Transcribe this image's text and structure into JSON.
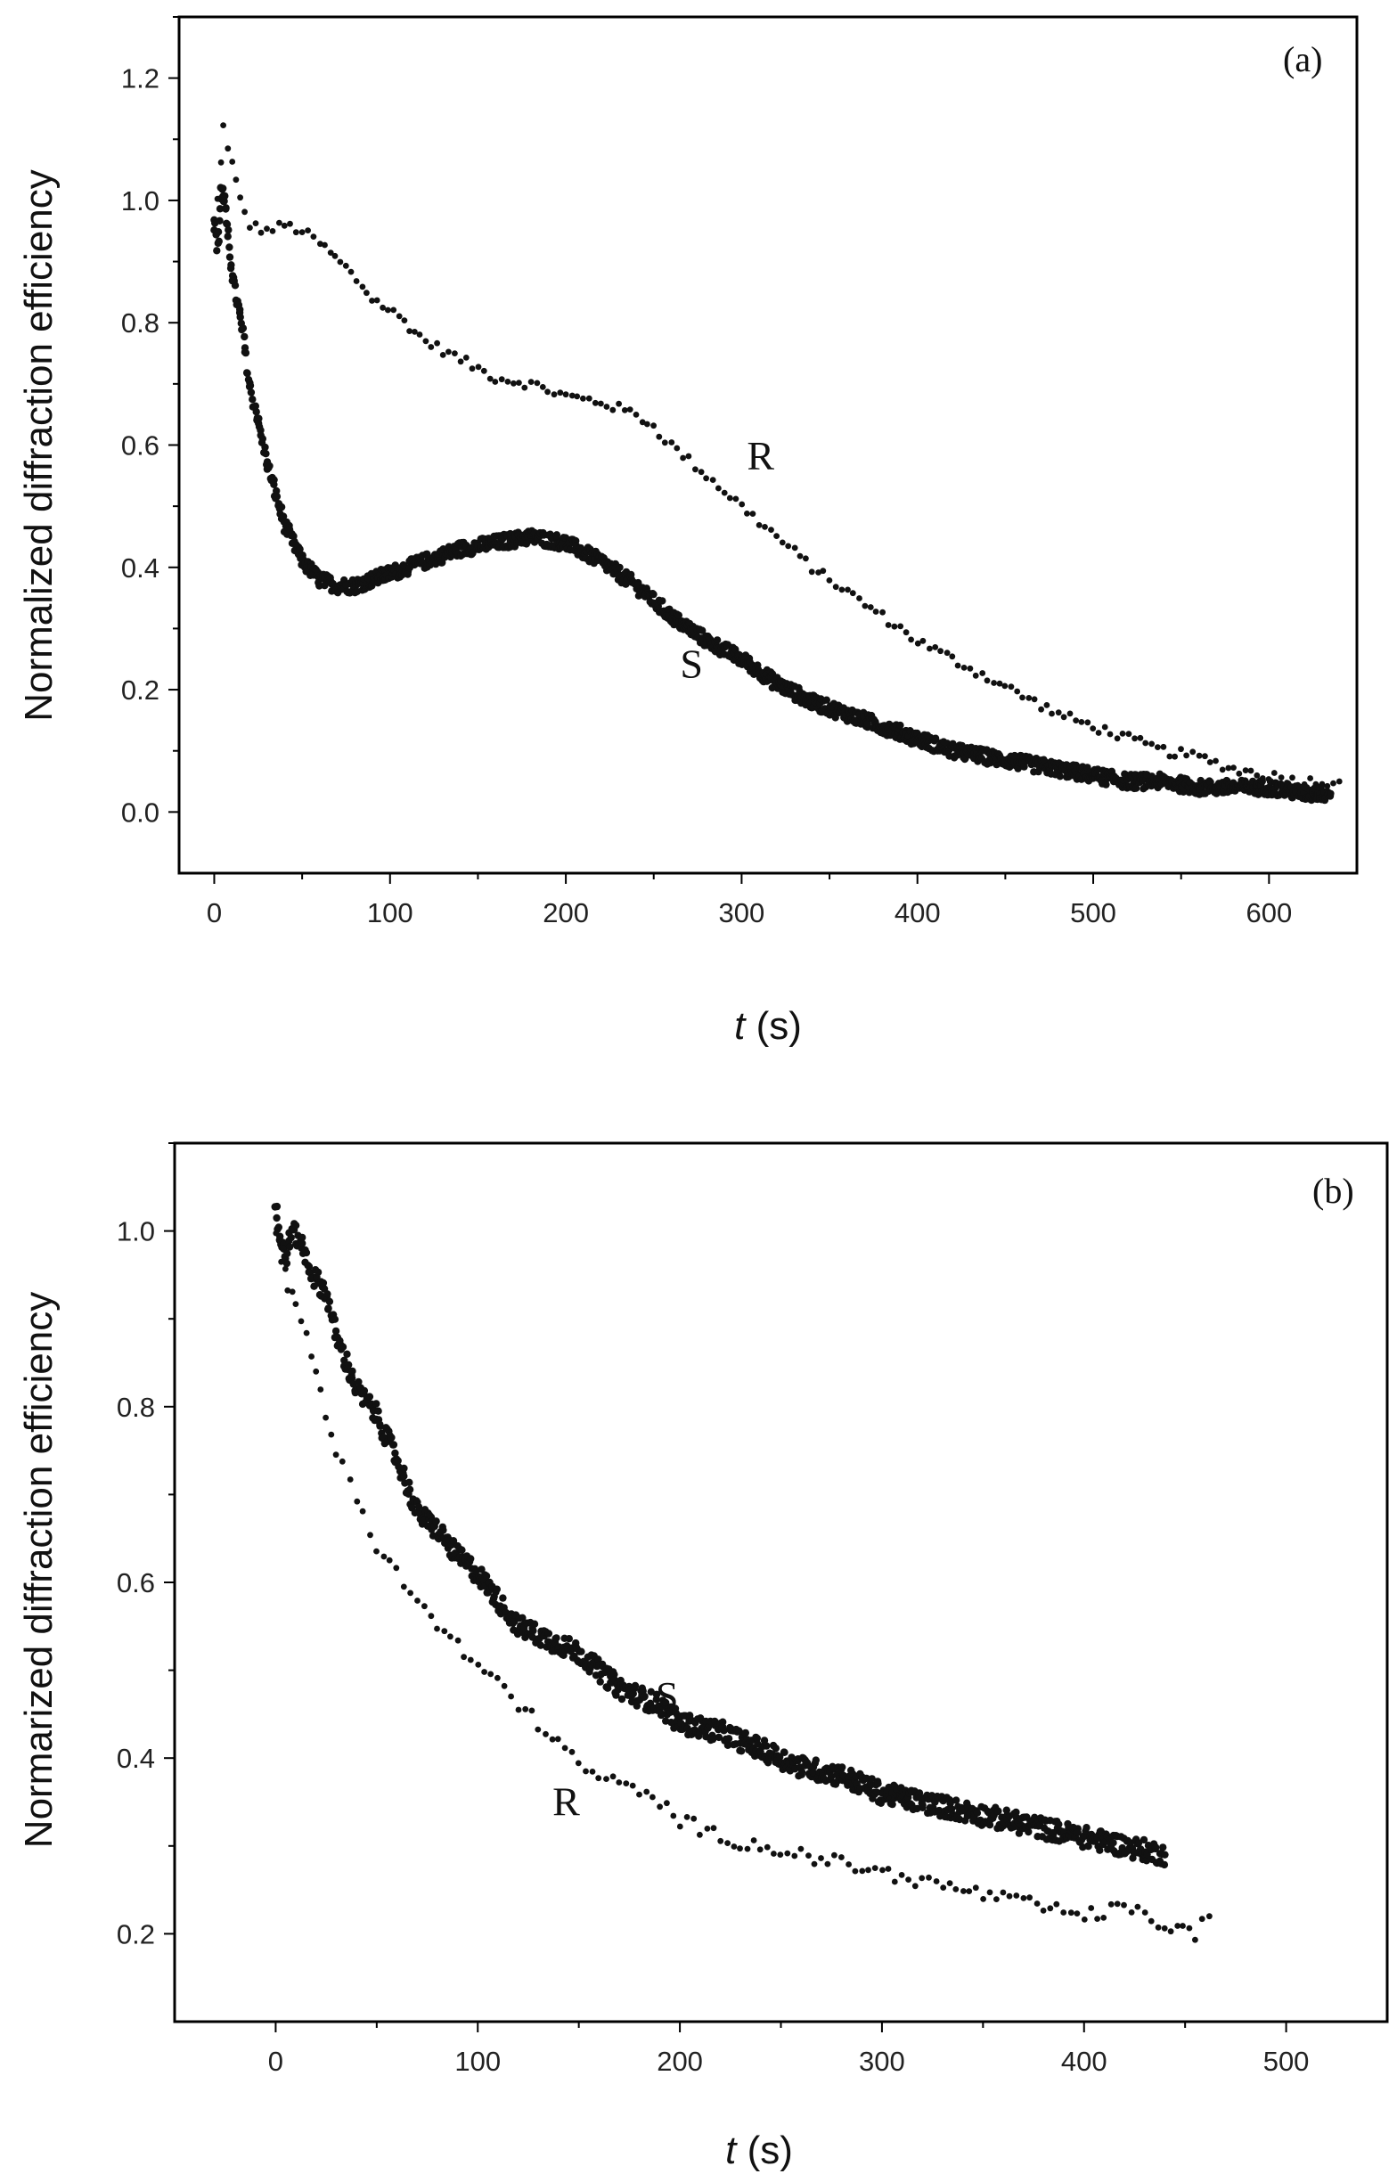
{
  "chart_data": [
    {
      "type": "scatter",
      "panel_label": "(a)",
      "xlabel_italic": "t",
      "xlabel_rest": " (s)",
      "ylabel": "Normalized diffraction efficiency",
      "xlim": [
        -20,
        650
      ],
      "ylim": [
        -0.1,
        1.3
      ],
      "xticks": [
        0,
        100,
        200,
        300,
        400,
        500,
        600
      ],
      "yticks": [
        0.0,
        0.2,
        0.4,
        0.6,
        0.8,
        1.0,
        1.2
      ],
      "xtick_labels": [
        "0",
        "100",
        "200",
        "300",
        "400",
        "500",
        "600"
      ],
      "ytick_labels": [
        "0.0",
        "0.2",
        "0.4",
        "0.6",
        "0.8",
        "1.0",
        "1.2"
      ],
      "series": [
        {
          "name": "R",
          "label_at": [
            303,
            0.56
          ],
          "style": "sparse",
          "x": [
            2,
            5,
            10,
            15,
            20,
            30,
            40,
            50,
            60,
            75,
            90,
            105,
            120,
            140,
            160,
            180,
            200,
            220,
            240,
            250,
            260,
            280,
            300,
            320,
            340,
            360,
            380,
            400,
            420,
            440,
            460,
            480,
            500,
            520,
            540,
            560,
            580,
            600,
            620,
            640
          ],
          "y": [
            1.0,
            1.12,
            1.06,
            1.0,
            0.96,
            0.95,
            0.96,
            0.95,
            0.93,
            0.89,
            0.84,
            0.81,
            0.77,
            0.74,
            0.71,
            0.7,
            0.68,
            0.67,
            0.65,
            0.63,
            0.6,
            0.55,
            0.5,
            0.45,
            0.4,
            0.36,
            0.32,
            0.28,
            0.25,
            0.22,
            0.19,
            0.16,
            0.14,
            0.12,
            0.1,
            0.09,
            0.07,
            0.06,
            0.05,
            0.05
          ]
        },
        {
          "name": "S",
          "label_at": [
            265,
            0.22
          ],
          "style": "dense",
          "x": [
            0,
            2,
            4,
            6,
            8,
            12,
            16,
            20,
            25,
            30,
            40,
            50,
            60,
            70,
            80,
            90,
            100,
            120,
            140,
            160,
            180,
            200,
            220,
            240,
            260,
            280,
            300,
            320,
            340,
            360,
            380,
            400,
            420,
            440,
            460,
            480,
            500,
            520,
            540,
            560,
            580,
            600,
            620,
            635
          ],
          "y": [
            0.97,
            0.92,
            1.02,
            1.0,
            0.93,
            0.85,
            0.79,
            0.7,
            0.64,
            0.57,
            0.47,
            0.41,
            0.38,
            0.37,
            0.37,
            0.38,
            0.39,
            0.41,
            0.43,
            0.44,
            0.45,
            0.44,
            0.41,
            0.37,
            0.32,
            0.28,
            0.25,
            0.21,
            0.18,
            0.16,
            0.14,
            0.12,
            0.1,
            0.09,
            0.08,
            0.07,
            0.06,
            0.05,
            0.05,
            0.04,
            0.04,
            0.04,
            0.03,
            0.03
          ]
        }
      ]
    },
    {
      "type": "scatter",
      "panel_label": "(b)",
      "xlabel_italic": "t",
      "xlabel_rest": "  (s)",
      "ylabel": "Normarized diffraction efficiency",
      "xlim": [
        -50,
        550
      ],
      "ylim": [
        0.1,
        1.1
      ],
      "xticks": [
        0,
        100,
        200,
        300,
        400,
        500
      ],
      "yticks": [
        0.2,
        0.4,
        0.6,
        0.8,
        1.0
      ],
      "xtick_labels": [
        "0",
        "100",
        "200",
        "300",
        "400",
        "500"
      ],
      "ytick_labels": [
        "0.2",
        "0.4",
        "0.6",
        "0.8",
        "1.0"
      ],
      "series": [
        {
          "name": "S",
          "label_at": [
            188,
            0.455
          ],
          "style": "dense",
          "x": [
            0,
            2,
            5,
            8,
            12,
            18,
            25,
            30,
            40,
            50,
            60,
            70,
            80,
            90,
            100,
            110,
            120,
            130,
            140,
            150,
            160,
            170,
            180,
            190,
            200,
            220,
            240,
            260,
            280,
            300,
            320,
            340,
            360,
            380,
            400,
            420,
            440
          ],
          "y": [
            1.03,
            0.99,
            0.97,
            1.0,
            0.99,
            0.95,
            0.93,
            0.88,
            0.82,
            0.79,
            0.74,
            0.68,
            0.66,
            0.63,
            0.61,
            0.58,
            0.55,
            0.54,
            0.53,
            0.52,
            0.5,
            0.48,
            0.47,
            0.46,
            0.44,
            0.43,
            0.41,
            0.39,
            0.38,
            0.36,
            0.35,
            0.34,
            0.33,
            0.32,
            0.31,
            0.3,
            0.29
          ]
        },
        {
          "name": "R",
          "label_at": [
            137,
            0.335
          ],
          "style": "sparse",
          "x": [
            0,
            3,
            6,
            10,
            15,
            20,
            25,
            30,
            40,
            50,
            60,
            70,
            80,
            90,
            100,
            110,
            120,
            130,
            140,
            150,
            160,
            170,
            180,
            190,
            200,
            220,
            240,
            260,
            280,
            300,
            320,
            340,
            360,
            380,
            400,
            420,
            440,
            455,
            462
          ],
          "y": [
            1.0,
            0.97,
            0.94,
            0.91,
            0.88,
            0.84,
            0.79,
            0.75,
            0.7,
            0.64,
            0.61,
            0.58,
            0.55,
            0.53,
            0.5,
            0.49,
            0.46,
            0.44,
            0.42,
            0.39,
            0.38,
            0.37,
            0.36,
            0.35,
            0.33,
            0.31,
            0.3,
            0.29,
            0.28,
            0.27,
            0.26,
            0.25,
            0.24,
            0.23,
            0.22,
            0.23,
            0.21,
            0.2,
            0.22
          ]
        }
      ]
    }
  ]
}
